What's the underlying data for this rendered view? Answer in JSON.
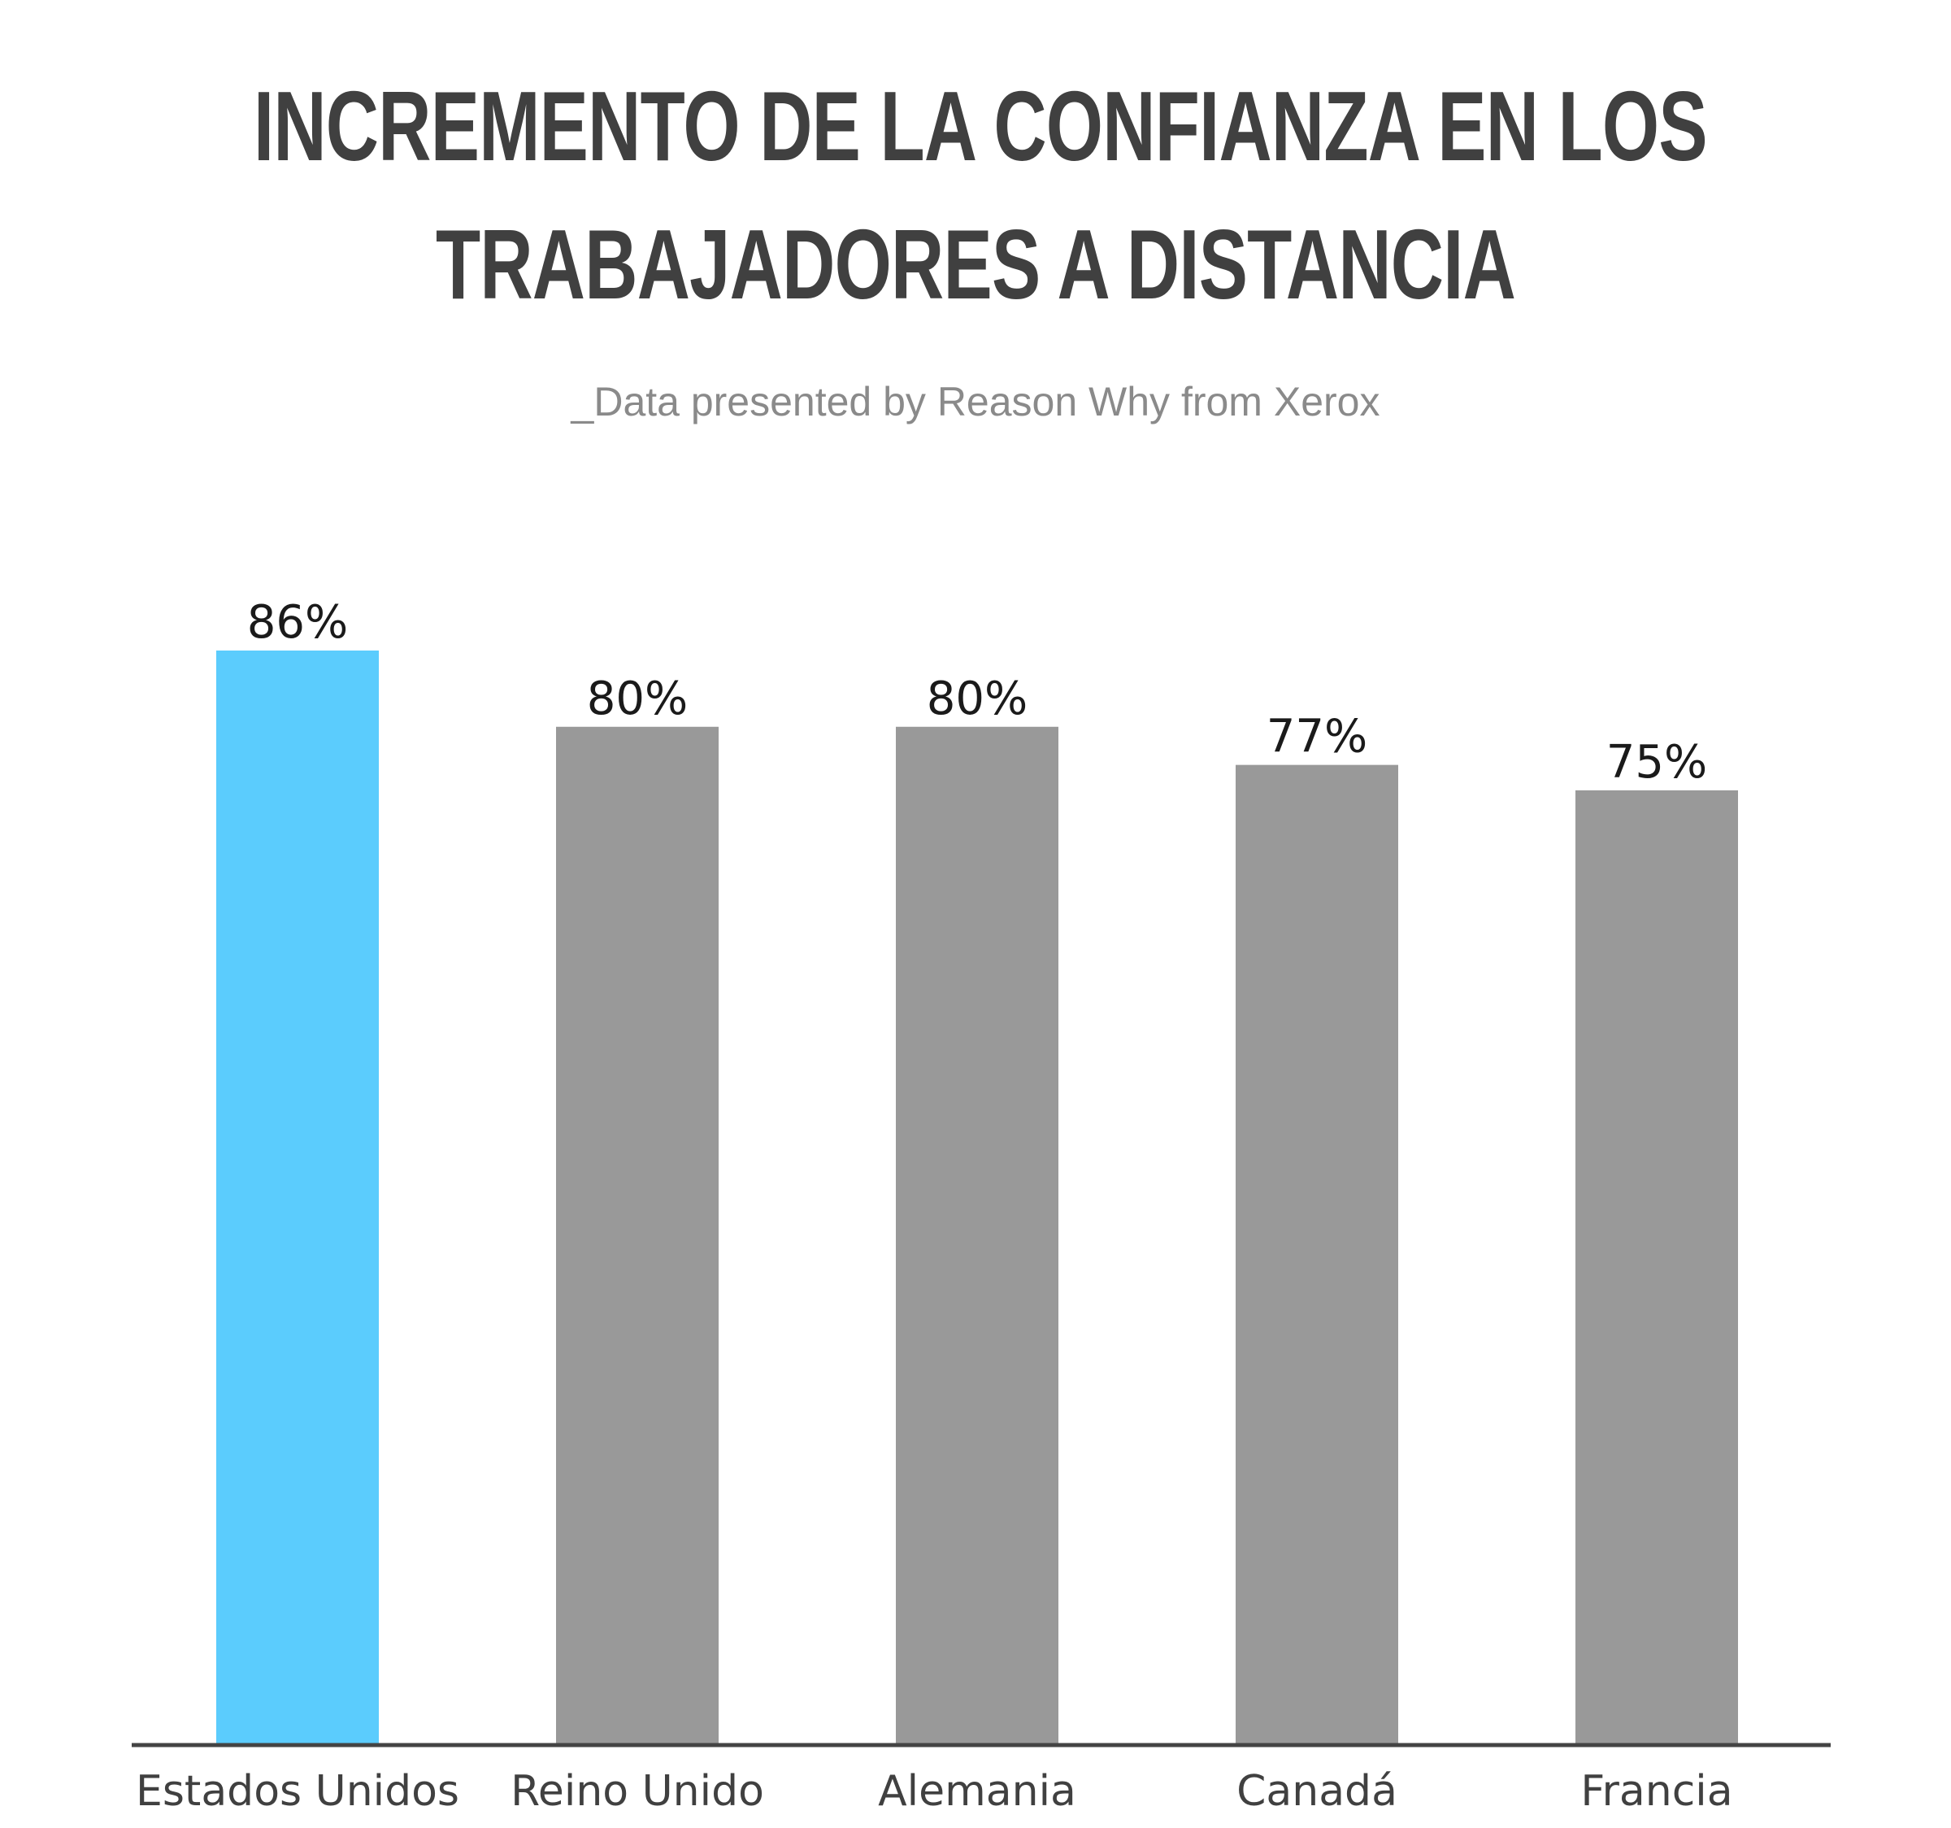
{
  "chart_data": {
    "type": "bar",
    "title_lines": [
      "INCREMENTO DE LA CONFIANZA EN LOS",
      "TRABAJADORES A DISTANCIA"
    ],
    "subtitle": "_Data presented by Reason Why from Xerox",
    "categories": [
      "Estados Unidos",
      "Reino Unido",
      "Alemania",
      "Canadá",
      "Francia"
    ],
    "values": [
      86,
      80,
      80,
      77,
      75
    ],
    "value_labels": [
      "86%",
      "80%",
      "80%",
      "77%",
      "75%"
    ],
    "unit": "%",
    "highlight_index": 0,
    "colors": {
      "highlight": "#5BCCFD",
      "bar": "#999999",
      "axis": "#444444",
      "title": "#404040",
      "subtitle": "#8a8a8a"
    },
    "ylim": [
      0,
      86
    ],
    "grid": false,
    "legend": "none"
  }
}
